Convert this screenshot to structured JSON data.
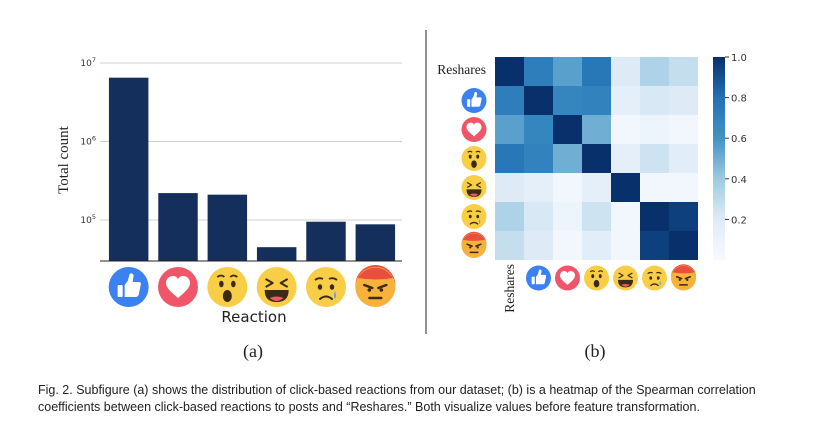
{
  "figure": {
    "subfig_a_label": "(a)",
    "subfig_b_label": "(b)",
    "caption": "Fig. 2.  Subfigure (a) shows the distribution of click-based reactions from our dataset; (b) is a heatmap of the Spearman correlation coefficients between click-based reactions to posts and “Reshares.” Both visualize values before feature transformation."
  },
  "chart_data": [
    {
      "type": "bar",
      "categories": [
        "like",
        "love",
        "wow",
        "haha",
        "sad",
        "angry"
      ],
      "category_icons": [
        "thumbs-up-icon",
        "heart-icon",
        "wow-face-icon",
        "haha-face-icon",
        "sad-face-icon",
        "angry-face-icon"
      ],
      "values": [
        6500000,
        220000,
        210000,
        45000,
        95000,
        88000
      ],
      "xlabel": "Reaction",
      "ylabel": "Total count",
      "yscale": "log",
      "ylim": [
        30000,
        10000000
      ],
      "yticks": [
        "10^7",
        "10^6",
        "10^5"
      ],
      "grid": true,
      "bar_color": "#152f5c"
    },
    {
      "type": "heatmap",
      "row_labels": [
        "Reshares",
        "like",
        "love",
        "wow",
        "haha",
        "sad",
        "angry"
      ],
      "col_labels": [
        "Reshares",
        "like",
        "love",
        "wow",
        "haha",
        "sad",
        "angry"
      ],
      "text_label": "Reshares",
      "values": [
        [
          1.0,
          0.72,
          0.55,
          0.76,
          0.2,
          0.35,
          0.28
        ],
        [
          0.72,
          1.0,
          0.68,
          0.7,
          0.15,
          0.22,
          0.2
        ],
        [
          0.55,
          0.68,
          1.0,
          0.5,
          0.05,
          0.08,
          0.05
        ],
        [
          0.76,
          0.7,
          0.5,
          1.0,
          0.15,
          0.25,
          0.18
        ],
        [
          0.2,
          0.15,
          0.05,
          0.15,
          1.0,
          0.05,
          0.05
        ],
        [
          0.35,
          0.22,
          0.08,
          0.25,
          0.05,
          1.0,
          0.95
        ],
        [
          0.28,
          0.2,
          0.05,
          0.18,
          0.05,
          0.95,
          1.0
        ]
      ],
      "colorbar_ticks": [
        "1.0",
        "0.8",
        "0.6",
        "0.4",
        "0.2"
      ],
      "colorbar_values": [
        1.0,
        0.8,
        0.6,
        0.4,
        0.2
      ],
      "vmin": 0.0,
      "vmax": 1.0,
      "cmap": [
        "#f7fbff",
        "#08306b"
      ]
    }
  ]
}
